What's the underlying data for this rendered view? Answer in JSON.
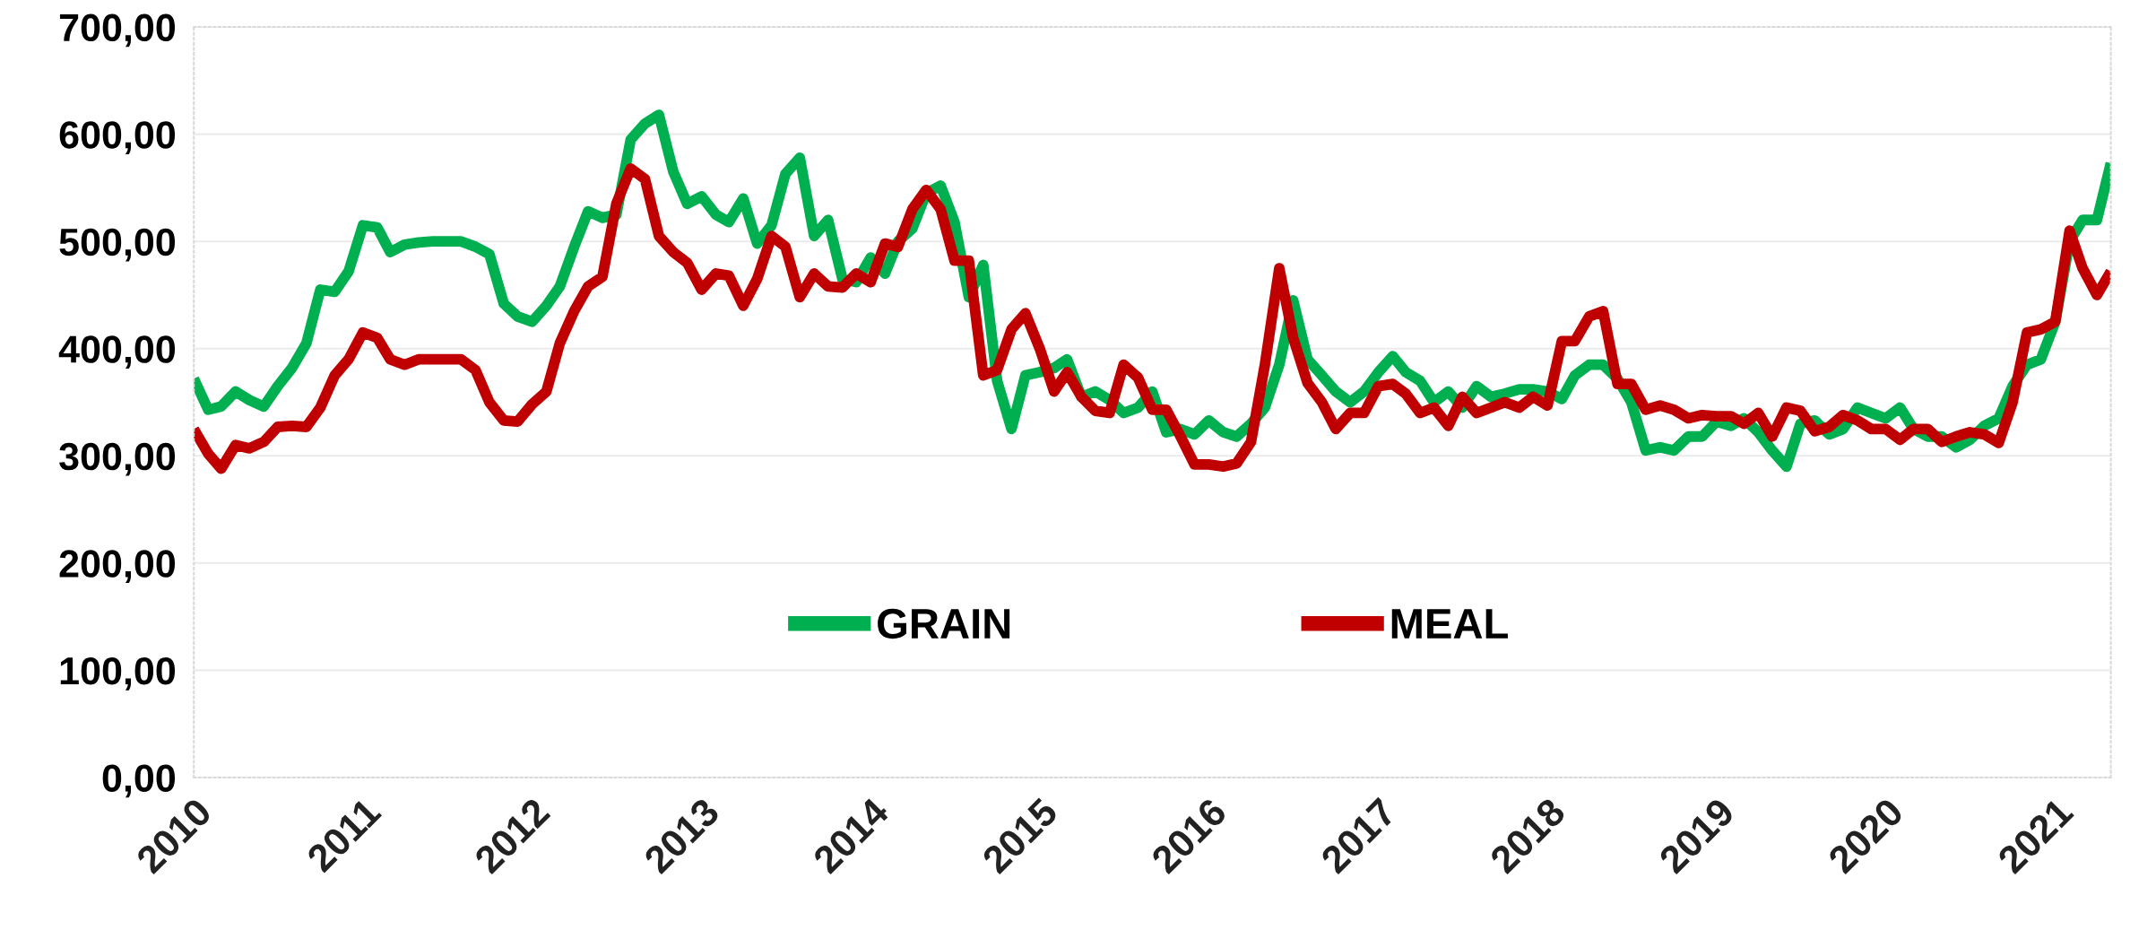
{
  "chart_data": {
    "type": "line",
    "x": [
      "2010-01",
      "2010-02",
      "2010-03",
      "2010-04",
      "2010-05",
      "2010-06",
      "2010-07",
      "2010-08",
      "2010-09",
      "2010-10",
      "2010-11",
      "2010-12",
      "2011-01",
      "2011-02",
      "2011-03",
      "2011-04",
      "2011-05",
      "2011-06",
      "2011-07",
      "2011-08",
      "2011-09",
      "2011-10",
      "2011-11",
      "2011-12",
      "2012-01",
      "2012-02",
      "2012-03",
      "2012-04",
      "2012-05",
      "2012-06",
      "2012-07",
      "2012-08",
      "2012-09",
      "2012-10",
      "2012-11",
      "2012-12",
      "2013-01",
      "2013-02",
      "2013-03",
      "2013-04",
      "2013-05",
      "2013-06",
      "2013-07",
      "2013-08",
      "2013-09",
      "2013-10",
      "2013-11",
      "2013-12",
      "2014-01",
      "2014-02",
      "2014-03",
      "2014-04",
      "2014-05",
      "2014-06",
      "2014-07",
      "2014-08",
      "2014-09",
      "2014-10",
      "2014-11",
      "2014-12",
      "2015-01",
      "2015-02",
      "2015-03",
      "2015-04",
      "2015-05",
      "2015-06",
      "2015-07",
      "2015-08",
      "2015-09",
      "2015-10",
      "2015-11",
      "2015-12",
      "2016-01",
      "2016-02",
      "2016-03",
      "2016-04",
      "2016-05",
      "2016-06",
      "2016-07",
      "2016-08",
      "2016-09",
      "2016-10",
      "2016-11",
      "2016-12",
      "2017-01",
      "2017-02",
      "2017-03",
      "2017-04",
      "2017-05",
      "2017-06",
      "2017-07",
      "2017-08",
      "2017-09",
      "2017-10",
      "2017-11",
      "2017-12",
      "2018-01",
      "2018-02",
      "2018-03",
      "2018-04",
      "2018-05",
      "2018-06",
      "2018-07",
      "2018-08",
      "2018-09",
      "2018-10",
      "2018-11",
      "2018-12",
      "2019-01",
      "2019-02",
      "2019-03",
      "2019-04",
      "2019-05",
      "2019-06",
      "2019-07",
      "2019-08",
      "2019-09",
      "2019-10",
      "2019-11",
      "2019-12",
      "2020-01",
      "2020-02",
      "2020-03",
      "2020-04",
      "2020-05",
      "2020-06",
      "2020-07",
      "2020-08",
      "2020-09",
      "2020-10",
      "2020-11",
      "2020-12",
      "2021-01",
      "2021-02",
      "2021-03",
      "2021-04",
      "2021-05"
    ],
    "xlim": [
      "2010-01",
      "2021-05"
    ],
    "xticks": [
      {
        "value": "2010-01",
        "label": "2010"
      },
      {
        "value": "2011-01",
        "label": "2011"
      },
      {
        "value": "2012-01",
        "label": "2012"
      },
      {
        "value": "2013-01",
        "label": "2013"
      },
      {
        "value": "2014-01",
        "label": "2014"
      },
      {
        "value": "2015-01",
        "label": "2015"
      },
      {
        "value": "2016-01",
        "label": "2016"
      },
      {
        "value": "2017-01",
        "label": "2017"
      },
      {
        "value": "2018-01",
        "label": "2018"
      },
      {
        "value": "2019-01",
        "label": "2019"
      },
      {
        "value": "2020-01",
        "label": "2020"
      },
      {
        "value": "2021-01",
        "label": "2021"
      }
    ],
    "ylim": [
      0,
      700
    ],
    "yticks": [
      {
        "value": 0,
        "label": "0,00"
      },
      {
        "value": 100,
        "label": "100,00"
      },
      {
        "value": 200,
        "label": "200,00"
      },
      {
        "value": 300,
        "label": "300,00"
      },
      {
        "value": 400,
        "label": "400,00"
      },
      {
        "value": 500,
        "label": "500,00"
      },
      {
        "value": 600,
        "label": "600,00"
      },
      {
        "value": 700,
        "label": "700,00"
      }
    ],
    "grid": "y",
    "legend": "bottom",
    "marker": "none",
    "line_style": "solid",
    "series": [
      {
        "name": "GRAIN",
        "color": "#00b050",
        "values": [
          372,
          343,
          346,
          360,
          352,
          346,
          365,
          382,
          405,
          455,
          453,
          472,
          515,
          513,
          490,
          497,
          499,
          500,
          500,
          500,
          495,
          488,
          442,
          430,
          425,
          440,
          458,
          495,
          528,
          522,
          525,
          595,
          610,
          618,
          565,
          535,
          542,
          525,
          518,
          540,
          498,
          515,
          563,
          578,
          505,
          520,
          465,
          462,
          485,
          470,
          500,
          512,
          545,
          552,
          518,
          448,
          478,
          370,
          325,
          375,
          378,
          382,
          390,
          355,
          360,
          352,
          340,
          345,
          360,
          322,
          325,
          320,
          333,
          322,
          318,
          330,
          345,
          385,
          445,
          390,
          375,
          360,
          350,
          360,
          378,
          393,
          378,
          370,
          350,
          360,
          345,
          365,
          355,
          358,
          362,
          362,
          360,
          353,
          375,
          385,
          385,
          372,
          350,
          305,
          308,
          305,
          318,
          318,
          332,
          328,
          335,
          322,
          305,
          290,
          330,
          333,
          320,
          325,
          345,
          340,
          335,
          345,
          325,
          318,
          318,
          308,
          315,
          328,
          335,
          365,
          385,
          390,
          425,
          500,
          520,
          520,
          573
        ]
      },
      {
        "name": "MEAL",
        "color": "#c00000",
        "values": [
          325,
          302,
          288,
          310,
          307,
          313,
          327,
          328,
          327,
          345,
          375,
          390,
          415,
          410,
          390,
          385,
          390,
          390,
          390,
          390,
          380,
          350,
          333,
          332,
          348,
          360,
          405,
          435,
          458,
          467,
          535,
          568,
          558,
          505,
          490,
          480,
          455,
          470,
          468,
          440,
          465,
          505,
          495,
          448,
          470,
          458,
          457,
          470,
          462,
          498,
          495,
          530,
          548,
          530,
          482,
          482,
          375,
          380,
          418,
          433,
          400,
          360,
          378,
          355,
          342,
          340,
          385,
          373,
          343,
          343,
          318,
          292,
          292,
          290,
          293,
          313,
          385,
          475,
          410,
          368,
          350,
          325,
          340,
          340,
          365,
          367,
          358,
          340,
          345,
          328,
          355,
          340,
          345,
          350,
          345,
          355,
          347,
          407,
          407,
          430,
          435,
          367,
          367,
          343,
          347,
          343,
          335,
          338,
          337,
          337,
          330,
          340,
          318,
          345,
          342,
          323,
          327,
          338,
          333,
          325,
          325,
          315,
          325,
          325,
          313,
          318,
          322,
          320,
          312,
          350,
          415,
          418,
          425,
          510,
          475,
          450,
          472
        ]
      }
    ]
  }
}
